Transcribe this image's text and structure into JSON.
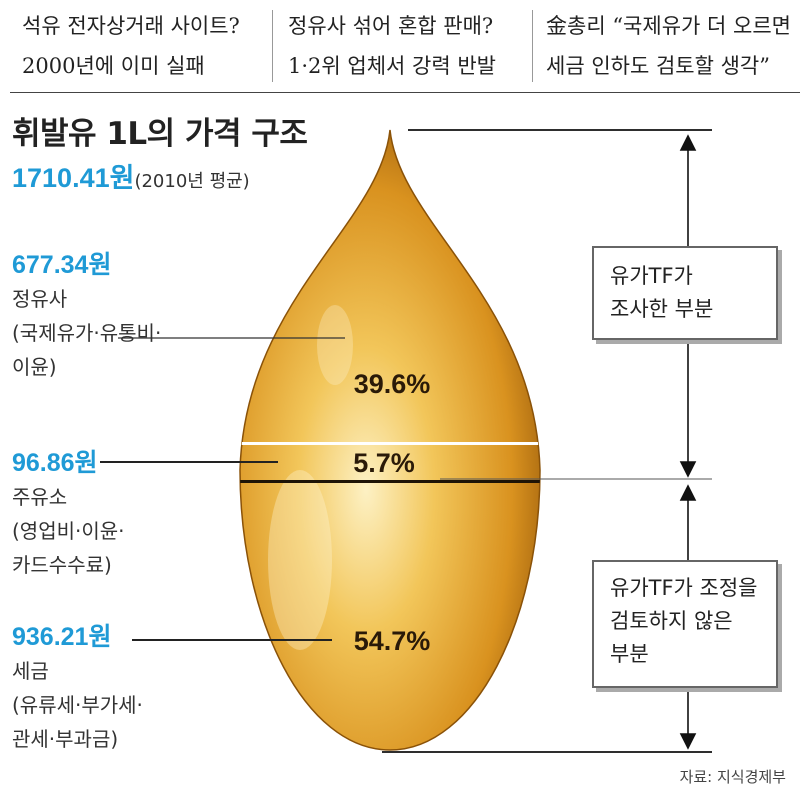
{
  "headlines": [
    {
      "line1": "석유 전자상거래 사이트?",
      "line2": "2000년에 이미 실패"
    },
    {
      "line1": "정유사 섞어 혼합 판매?",
      "line2": "1·2위 업체서 강력 반발"
    },
    {
      "line1": "金총리 “국제유가 더 오르면",
      "line2": "세금 인하도 검토할 생각”"
    }
  ],
  "chart_data": {
    "type": "pie",
    "title": "휘발유 1L의 가격 구조",
    "total": {
      "value": "1710.41원",
      "note": "(2010년 평균)"
    },
    "segments": [
      {
        "amount": "677.34원",
        "label": "정유사",
        "detail1": "(국제유가·유통비·",
        "detail2": "이윤)",
        "percent": 39.6,
        "percent_label": "39.6%"
      },
      {
        "amount": "96.86원",
        "label": "주유소",
        "detail1": "(영업비·이윤·",
        "detail2": "카드수수료)",
        "percent": 5.7,
        "percent_label": "5.7%"
      },
      {
        "amount": "936.21원",
        "label": "세금",
        "detail1": "(유류세·부가세·",
        "detail2": "관세·부과금)",
        "percent": 54.7,
        "percent_label": "54.7%"
      }
    ],
    "brackets": [
      {
        "line1": "유가TF가",
        "line2": "조사한 부분"
      },
      {
        "line1": "유가TF가 조정을",
        "line2": "검토하지 않은",
        "line3": "부분"
      }
    ],
    "source": "자료: 지식경제부"
  },
  "colors": {
    "drop_light": "#fbe8a6",
    "drop_mid": "#e3a52a",
    "drop_dark": "#a8670f",
    "accent_blue": "#1f9ad6"
  }
}
